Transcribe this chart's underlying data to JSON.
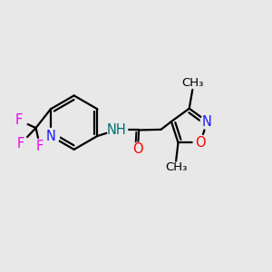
{
  "background_color": "#e8e8e8",
  "bond_color": "#000000",
  "bond_lw": 1.6,
  "atom_colors": {
    "N": "#1a1aff",
    "NH": "#007070",
    "O": "#ff0000",
    "F": "#ee00ee",
    "C": "#000000"
  },
  "font_size_atom": 10.5,
  "font_size_methyl": 9.5,
  "fig_w": 3.0,
  "fig_h": 3.0,
  "dpi": 100,
  "xlim": [
    0,
    10
  ],
  "ylim": [
    0,
    10
  ]
}
